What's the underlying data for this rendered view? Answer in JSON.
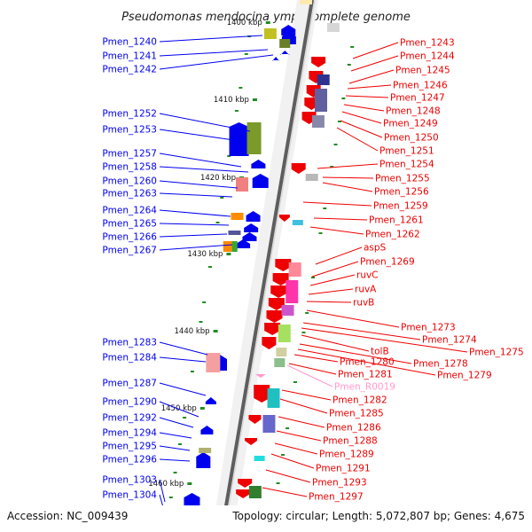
{
  "title": "Pseudomonas mendocina ymp, complete genome",
  "accession": "Accession: NC_009439",
  "summary": "Topology: circular; Length: 5,072,807 bp; Genes: 4,675",
  "colors": {
    "plus_strand": "#0000ee",
    "minus_strand": "#ee0000",
    "rna": "#ff99cc",
    "backbone": "#777777",
    "tick": "#228b22"
  },
  "ticks": [
    "1400 kbp",
    "1410 kbp",
    "1420 kbp",
    "1430 kbp",
    "1440 kbp",
    "1450 kbp",
    "1460 kbp"
  ],
  "left_labels": [
    "Pmen_1240",
    "Pmen_1241",
    "Pmen_1242",
    "Pmen_1252",
    "Pmen_1253",
    "Pmen_1257",
    "Pmen_1258",
    "Pmen_1260",
    "Pmen_1263",
    "Pmen_1264",
    "Pmen_1265",
    "Pmen_1266",
    "Pmen_1267",
    "Pmen_1283",
    "Pmen_1284",
    "Pmen_1287",
    "Pmen_1290",
    "Pmen_1292",
    "Pmen_1294",
    "Pmen_1295",
    "Pmen_1296",
    "Pmen_1303",
    "Pmen_1304"
  ],
  "right_labels": [
    "Pmen_1243",
    "Pmen_1244",
    "Pmen_1245",
    "Pmen_1246",
    "Pmen_1247",
    "Pmen_1248",
    "Pmen_1249",
    "Pmen_1250",
    "Pmen_1251",
    "Pmen_1254",
    "Pmen_1255",
    "Pmen_1256",
    "Pmen_1259",
    "Pmen_1261",
    "Pmen_1262",
    "aspS",
    "Pmen_1269",
    "ruvC",
    "ruvA",
    "ruvB",
    "Pmen_1273",
    "Pmen_1274",
    "Pmen_1275",
    "tolB",
    "Pmen_1278",
    "Pmen_1279",
    "Pmen_1280",
    "Pmen_1281",
    "Pmen_R0019",
    "Pmen_1282",
    "Pmen_1285",
    "Pmen_1286",
    "Pmen_1288",
    "Pmen_1289",
    "Pmen_1291",
    "Pmen_1293",
    "Pmen_1297"
  ]
}
